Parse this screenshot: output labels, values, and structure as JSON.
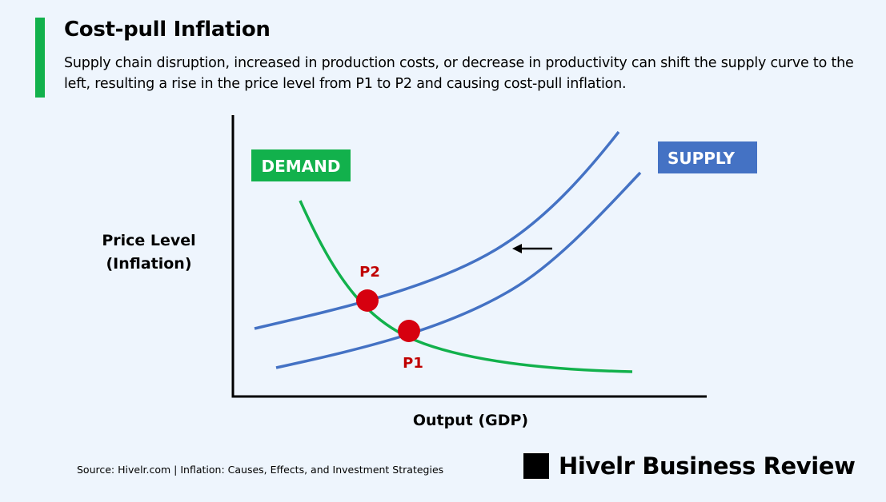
{
  "header": {
    "title": "Cost-pull Inflation",
    "description": "Supply chain disruption, increased in production costs, or decrease in productivity can shift the supply curve to the left, resulting a rise in the price level from P1 to P2 and causing cost-pull inflation."
  },
  "diagram": {
    "y_axis_label_line1": "Price Level",
    "y_axis_label_line2": "(Inflation)",
    "x_axis_label": "Output (GDP)",
    "demand_label": "DEMAND",
    "supply_label": "SUPPLY",
    "point_1_label": "P1",
    "point_2_label": "P2",
    "colors": {
      "demand": "#12b14c",
      "supply": "#4472c4",
      "point": "#d6000f",
      "point_label": "#c00000"
    }
  },
  "footer": {
    "source": "Source: Hivelr.com | Inflation: Causes, Effects, and Investment Strategies",
    "brand": "Hivelr Business Review"
  }
}
